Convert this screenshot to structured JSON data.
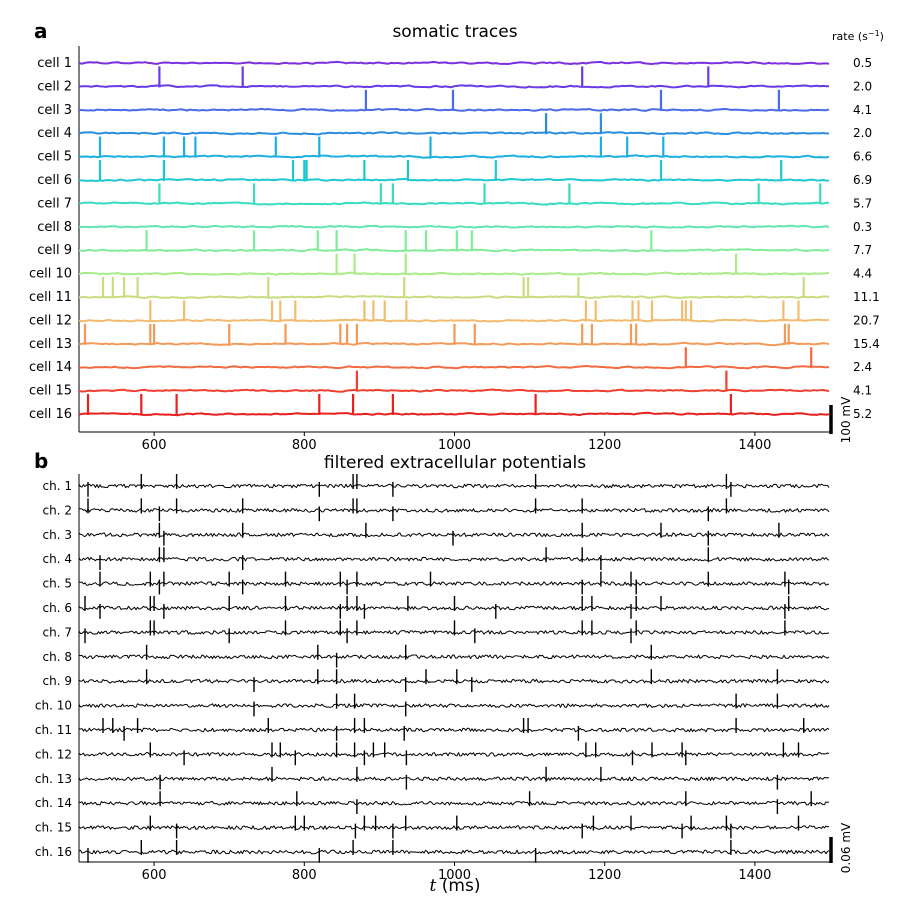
{
  "chart_data": [
    {
      "type": "line",
      "panel_label": "a",
      "title": "somatic traces",
      "rate_header": "rate (s",
      "rate_header_sup": "−1",
      "rate_header_close": ")",
      "xlim": [
        500,
        1500
      ],
      "xticks": [
        600,
        800,
        1000,
        1200,
        1400
      ],
      "scale_bar_label": "100 mV",
      "series": [
        {
          "name": "cell 1",
          "color": "#7b2fe0",
          "rate": "0.5",
          "spikes": []
        },
        {
          "name": "cell 2",
          "color": "#6a3ae8",
          "rate": "2.0",
          "spikes": [
            607,
            718,
            1170,
            1338
          ]
        },
        {
          "name": "cell 3",
          "color": "#4a6ae8",
          "rate": "4.1",
          "spikes": [
            882,
            998,
            1275,
            1432
          ]
        },
        {
          "name": "cell 4",
          "color": "#2a8ee0",
          "rate": "2.0",
          "spikes": [
            1122,
            1195
          ]
        },
        {
          "name": "cell 5",
          "color": "#1ab0e0",
          "rate": "6.6",
          "spikes": [
            528,
            613,
            640,
            655,
            762,
            820,
            968,
            1195,
            1230,
            1278
          ]
        },
        {
          "name": "cell 6",
          "color": "#1ec8d0",
          "rate": "6.9",
          "spikes": [
            528,
            613,
            785,
            800,
            803,
            880,
            938,
            1055,
            1275,
            1435
          ]
        },
        {
          "name": "cell 7",
          "color": "#38dcc0",
          "rate": "5.7",
          "spikes": [
            607,
            733,
            902,
            918,
            1040,
            1153,
            1405,
            1487
          ]
        },
        {
          "name": "cell 8",
          "color": "#60e6b0",
          "rate": "0.3",
          "spikes": []
        },
        {
          "name": "cell 9",
          "color": "#80ec98",
          "rate": "7.7",
          "spikes": [
            590,
            733,
            818,
            843,
            935,
            962,
            1003,
            1023,
            1262
          ]
        },
        {
          "name": "cell 10",
          "color": "#a8ec88",
          "rate": "4.4",
          "spikes": [
            843,
            867,
            935,
            1375
          ]
        },
        {
          "name": "cell 11",
          "color": "#c8dc80",
          "rate": "11.1",
          "spikes": [
            532,
            545,
            560,
            578,
            752,
            933,
            1092,
            1098,
            1165,
            1465
          ]
        },
        {
          "name": "cell 12",
          "color": "#f2bc70",
          "rate": "20.7",
          "spikes": [
            595,
            640,
            757,
            768,
            788,
            880,
            892,
            907,
            936,
            1175,
            1188,
            1237,
            1245,
            1263,
            1303,
            1308,
            1315,
            1438,
            1458
          ]
        },
        {
          "name": "cell 13",
          "color": "#f49a58",
          "rate": "15.4",
          "spikes": [
            508,
            595,
            600,
            700,
            775,
            848,
            857,
            870,
            1000,
            1027,
            1170,
            1183,
            1235,
            1242,
            1440,
            1445
          ]
        },
        {
          "name": "cell 14",
          "color": "#f46a40",
          "rate": "2.4",
          "spikes": [
            1308,
            1475
          ]
        },
        {
          "name": "cell 15",
          "color": "#f04030",
          "rate": "4.1",
          "spikes": [
            870,
            1362
          ]
        },
        {
          "name": "cell 16",
          "color": "#e82020",
          "rate": "5.2",
          "spikes": [
            512,
            583,
            630,
            820,
            865,
            918,
            1108,
            1368
          ]
        }
      ]
    },
    {
      "type": "line",
      "panel_label": "b",
      "title": "filtered extracellular potentials",
      "xlim": [
        500,
        1500
      ],
      "xticks": [
        600,
        800,
        1000,
        1200,
        1400
      ],
      "xlabel_var": "t",
      "xlabel_unit": " (ms)",
      "scale_bar_label": "0.06 mV",
      "series": [
        {
          "name": "ch. 1",
          "spikes": [
            512,
            583,
            630,
            820,
            865,
            870,
            918,
            1108,
            1362,
            1368
          ]
        },
        {
          "name": "ch. 2",
          "spikes": [
            512,
            583,
            607,
            630,
            718,
            820,
            865,
            870,
            918,
            1108,
            1170,
            1338,
            1362
          ]
        },
        {
          "name": "ch. 3",
          "spikes": [
            607,
            613,
            718,
            882,
            998,
            1170,
            1275,
            1338,
            1432
          ]
        },
        {
          "name": "ch. 4",
          "spikes": [
            528,
            607,
            613,
            718,
            1122,
            1170,
            1195,
            1338
          ]
        },
        {
          "name": "ch. 5",
          "spikes": [
            528,
            595,
            607,
            613,
            700,
            718,
            775,
            848,
            857,
            870,
            968,
            1170,
            1195,
            1235,
            1242,
            1338,
            1440,
            1445
          ]
        },
        {
          "name": "ch. 6",
          "spikes": [
            508,
            528,
            595,
            600,
            613,
            700,
            775,
            848,
            857,
            870,
            880,
            938,
            1000,
            1055,
            1170,
            1183,
            1235,
            1242,
            1275,
            1440,
            1445
          ]
        },
        {
          "name": "ch. 7",
          "spikes": [
            508,
            595,
            600,
            700,
            775,
            848,
            857,
            870,
            1000,
            1027,
            1170,
            1183,
            1235,
            1242,
            1440
          ]
        },
        {
          "name": "ch. 8",
          "spikes": [
            590,
            818,
            843,
            935,
            1262
          ]
        },
        {
          "name": "ch. 9",
          "spikes": [
            590,
            733,
            818,
            843,
            935,
            962,
            1003,
            1023,
            1262,
            1430
          ]
        },
        {
          "name": "ch. 10",
          "spikes": [
            733,
            843,
            867,
            935,
            1375,
            1430
          ]
        },
        {
          "name": "ch. 11",
          "spikes": [
            532,
            545,
            560,
            578,
            752,
            843,
            867,
            880,
            933,
            1092,
            1098,
            1165,
            1375,
            1465
          ]
        },
        {
          "name": "ch. 12",
          "spikes": [
            595,
            640,
            757,
            768,
            788,
            843,
            867,
            880,
            892,
            907,
            936,
            1175,
            1188,
            1237,
            1263,
            1303,
            1308,
            1438,
            1458
          ]
        },
        {
          "name": "ch. 13",
          "spikes": [
            608,
            757,
            870,
            936,
            1122,
            1195,
            1430
          ]
        },
        {
          "name": "ch. 14",
          "spikes": [
            608,
            790,
            870,
            1100,
            1308,
            1430,
            1475
          ]
        },
        {
          "name": "ch. 15",
          "spikes": [
            595,
            630,
            788,
            800,
            868,
            880,
            895,
            918,
            935,
            1003,
            1170,
            1185,
            1235,
            1303,
            1315,
            1362,
            1368,
            1458
          ]
        },
        {
          "name": "ch. 16",
          "spikes": [
            512,
            583,
            630,
            820,
            865,
            918,
            1108,
            1368
          ]
        }
      ]
    }
  ]
}
